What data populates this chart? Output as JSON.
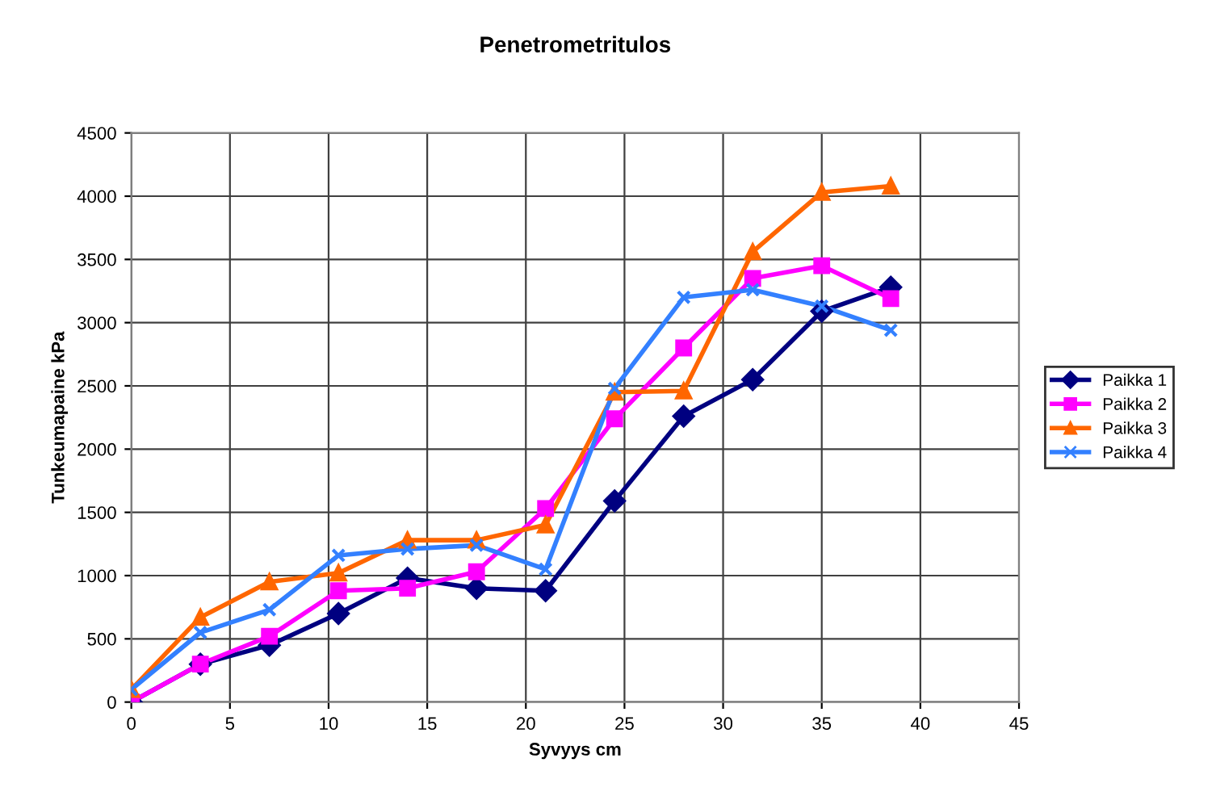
{
  "chart_data": {
    "type": "line",
    "title": "Penetrometritulos",
    "xlabel": "Syvyys cm",
    "ylabel": "Tunkeumapaine kPa",
    "x": [
      0,
      3.5,
      7,
      10.5,
      14,
      17.5,
      21,
      24.5,
      28,
      31.5,
      35,
      38.5
    ],
    "series": [
      {
        "name": "Paikka 1",
        "color": "#000080",
        "marker": "diamond",
        "values": [
          0,
          300,
          450,
          700,
          980,
          900,
          880,
          1590,
          2260,
          2550,
          3090,
          3280
        ]
      },
      {
        "name": "Paikka 2",
        "color": "#ff00ff",
        "marker": "square",
        "values": [
          0,
          300,
          520,
          880,
          900,
          1030,
          1530,
          2240,
          2800,
          3350,
          3450,
          3190
        ]
      },
      {
        "name": "Paikka 3",
        "color": "#ff6600",
        "marker": "triangle",
        "values": [
          100,
          670,
          950,
          1020,
          1280,
          1280,
          1400,
          2450,
          2460,
          3560,
          4030,
          4080
        ]
      },
      {
        "name": "Paikka 4",
        "color": "#3380ff",
        "marker": "cross",
        "values": [
          100,
          550,
          730,
          1160,
          1210,
          1240,
          1050,
          2480,
          3200,
          3260,
          3130,
          2940
        ]
      }
    ],
    "xlim": [
      0,
      45
    ],
    "xticks": [
      0,
      5,
      10,
      15,
      20,
      25,
      30,
      35,
      40,
      45
    ],
    "ylim": [
      0,
      4500
    ],
    "yticks": [
      0,
      500,
      1000,
      1500,
      2000,
      2500,
      3000,
      3500,
      4000,
      4500
    ],
    "grid": true,
    "legend": "right",
    "line_style": "solid"
  }
}
